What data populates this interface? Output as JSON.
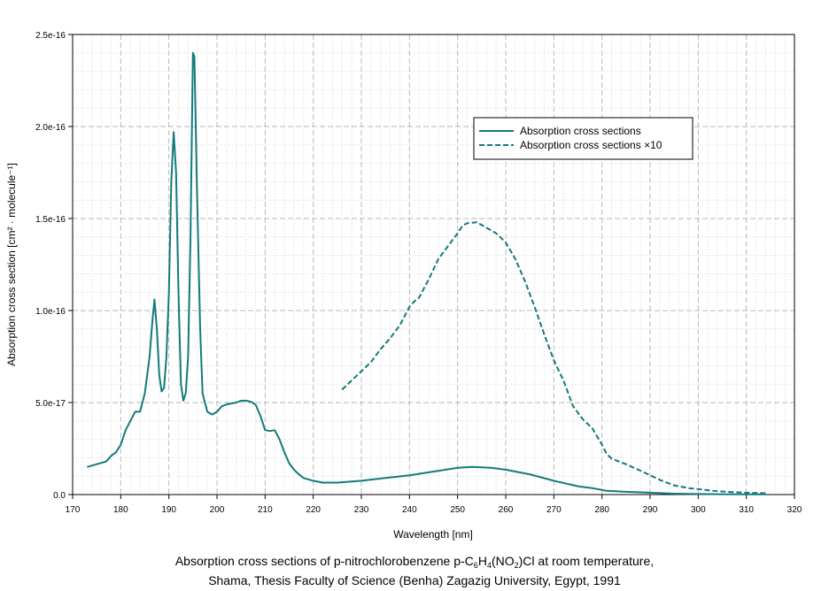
{
  "chart_data": {
    "type": "line",
    "xlabel": "Wavelength [nm]",
    "ylabel": "Absorption cross section [cm² · molecule⁻¹]",
    "xlim": [
      170,
      320
    ],
    "ylim": [
      0,
      2.5e-16
    ],
    "x_ticks": [
      170,
      180,
      190,
      200,
      210,
      220,
      230,
      240,
      250,
      260,
      270,
      280,
      290,
      300,
      310,
      320
    ],
    "y_ticks": [
      0,
      5e-17,
      1e-16,
      1.5e-16,
      2e-16,
      2.5e-16
    ],
    "y_tick_labels": [
      "0.0",
      "5.0e-17",
      "1.0e-16",
      "1.5e-16",
      "2.0e-16",
      "2.5e-16"
    ],
    "grid": true,
    "legend_position": "top-right",
    "series": [
      {
        "name": "Absorption cross sections",
        "style": "solid",
        "color": "#137b7b",
        "points": [
          [
            173,
            1.5e-17
          ],
          [
            175,
            1.65e-17
          ],
          [
            177,
            1.8e-17
          ],
          [
            178,
            2.1e-17
          ],
          [
            179,
            2.3e-17
          ],
          [
            180,
            2.7e-17
          ],
          [
            181,
            3.5e-17
          ],
          [
            182,
            4e-17
          ],
          [
            183,
            4.5e-17
          ],
          [
            184,
            4.5e-17
          ],
          [
            185,
            5.5e-17
          ],
          [
            185.5,
            6.5e-17
          ],
          [
            186,
            7.5e-17
          ],
          [
            186.6,
            9.5e-17
          ],
          [
            187,
            1.06e-16
          ],
          [
            187.5,
            9e-17
          ],
          [
            188,
            6.5e-17
          ],
          [
            188.5,
            5.6e-17
          ],
          [
            189,
            5.8e-17
          ],
          [
            189.5,
            7.5e-17
          ],
          [
            190,
            1.1e-16
          ],
          [
            190.5,
            1.7e-16
          ],
          [
            191,
            1.97e-16
          ],
          [
            191.5,
            1.75e-16
          ],
          [
            192,
            1.1e-16
          ],
          [
            192.5,
            6e-17
          ],
          [
            193,
            5.1e-17
          ],
          [
            193.5,
            5.5e-17
          ],
          [
            194,
            7.5e-17
          ],
          [
            194.5,
            1.4e-16
          ],
          [
            195,
            2.4e-16
          ],
          [
            195.3,
            2.38e-16
          ],
          [
            195.8,
            1.7e-16
          ],
          [
            196.5,
            9e-17
          ],
          [
            197,
            5.5e-17
          ],
          [
            198,
            4.5e-17
          ],
          [
            199,
            4.35e-17
          ],
          [
            200,
            4.5e-17
          ],
          [
            201,
            4.8e-17
          ],
          [
            202,
            4.9e-17
          ],
          [
            203,
            4.95e-17
          ],
          [
            204,
            5e-17
          ],
          [
            205,
            5.1e-17
          ],
          [
            206,
            5.1e-17
          ],
          [
            207,
            5.05e-17
          ],
          [
            208,
            4.9e-17
          ],
          [
            209,
            4.3e-17
          ],
          [
            210,
            3.5e-17
          ],
          [
            211,
            3.45e-17
          ],
          [
            212,
            3.5e-17
          ],
          [
            213,
            3e-17
          ],
          [
            214,
            2.3e-17
          ],
          [
            215,
            1.7e-17
          ],
          [
            216,
            1.35e-17
          ],
          [
            217,
            1.1e-17
          ],
          [
            218,
            9e-18
          ],
          [
            220,
            7.5e-18
          ],
          [
            222,
            6.5e-18
          ],
          [
            225,
            6.5e-18
          ],
          [
            230,
            7.5e-18
          ],
          [
            235,
            9e-18
          ],
          [
            240,
            1.05e-17
          ],
          [
            245,
            1.25e-17
          ],
          [
            250,
            1.45e-17
          ],
          [
            253,
            1.5e-17
          ],
          [
            257,
            1.45e-17
          ],
          [
            260,
            1.35e-17
          ],
          [
            265,
            1.1e-17
          ],
          [
            270,
            7.5e-18
          ],
          [
            275,
            4.5e-18
          ],
          [
            278,
            3.5e-18
          ],
          [
            281,
            2e-18
          ],
          [
            285,
            1.5e-18
          ],
          [
            290,
            1e-18
          ],
          [
            295,
            5e-19
          ],
          [
            300,
            3e-19
          ],
          [
            305,
            2e-19
          ],
          [
            310,
            1e-19
          ],
          [
            314,
            1e-19
          ]
        ]
      },
      {
        "name": "Absorption cross sections ×10",
        "style": "dashed",
        "color": "#137b7b",
        "points": [
          [
            226,
            5.7e-17
          ],
          [
            228,
            6.2e-17
          ],
          [
            230,
            6.7e-17
          ],
          [
            232,
            7.2e-17
          ],
          [
            234,
            7.9e-17
          ],
          [
            236,
            8.5e-17
          ],
          [
            238,
            9.2e-17
          ],
          [
            240,
            1.02e-16
          ],
          [
            241,
            1.05e-16
          ],
          [
            242,
            1.07e-16
          ],
          [
            244,
            1.17e-16
          ],
          [
            246,
            1.28e-16
          ],
          [
            248,
            1.35e-16
          ],
          [
            250,
            1.42e-16
          ],
          [
            251,
            1.46e-16
          ],
          [
            252,
            1.475e-16
          ],
          [
            254,
            1.48e-16
          ],
          [
            256,
            1.45e-16
          ],
          [
            258,
            1.42e-16
          ],
          [
            260,
            1.37e-16
          ],
          [
            262,
            1.28e-16
          ],
          [
            264,
            1.16e-16
          ],
          [
            266,
            1.02e-16
          ],
          [
            268,
            8.7e-17
          ],
          [
            270,
            7.3e-17
          ],
          [
            272,
            6.2e-17
          ],
          [
            274,
            4.8e-17
          ],
          [
            276,
            4.1e-17
          ],
          [
            278,
            3.6e-17
          ],
          [
            280,
            2.7e-17
          ],
          [
            281,
            2.2e-17
          ],
          [
            282,
            1.95e-17
          ],
          [
            285,
            1.65e-17
          ],
          [
            288,
            1.3e-17
          ],
          [
            290,
            1.05e-17
          ],
          [
            292,
            8e-18
          ],
          [
            295,
            5e-18
          ],
          [
            298,
            3.5e-18
          ],
          [
            300,
            3e-18
          ],
          [
            303,
            2e-18
          ],
          [
            306,
            1.5e-18
          ],
          [
            310,
            1e-18
          ],
          [
            314,
            7e-19
          ]
        ]
      }
    ]
  },
  "caption": {
    "line1_pre": "Absorption cross sections of p-nitrochlorobenzene p-C",
    "sub1": "6",
    "mid1": "H",
    "sub2": "4",
    "mid2": "(NO",
    "sub3": "2",
    "line1_post": ")Cl at room temperature,",
    "line2": "Shama, Thesis Faculty of Science (Benha) Zagazig University, Egypt, 1991"
  }
}
